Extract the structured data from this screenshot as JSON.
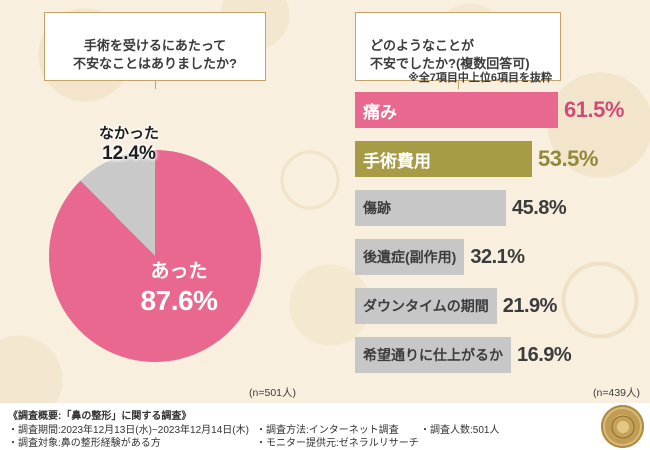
{
  "chart_data": [
    {
      "type": "pie",
      "question": "手術を受けるにあたって\n不安なことはありましたか?",
      "slices": [
        {
          "label": "あった",
          "value": 87.6,
          "pct_label": "87.6%",
          "color": "#e9688f"
        },
        {
          "label": "なかった",
          "value": 12.4,
          "pct_label": "12.4%",
          "color": "#c9c9c9"
        }
      ],
      "sample_size": "(n=501人)"
    },
    {
      "type": "bar",
      "orientation": "horizontal",
      "question": "どのようなことが\n不安でしたか?(複数回答可)",
      "note": "※全7項目中上位6項目を抜粋",
      "xlim": [
        0,
        65
      ],
      "bars": [
        {
          "label": "痛み",
          "value": 61.5,
          "pct_label": "61.5%",
          "color": "#e9688f",
          "label_color": "#ffffff",
          "pct_color": "#d14b79"
        },
        {
          "label": "手術費用",
          "value": 53.5,
          "pct_label": "53.5%",
          "color": "#a79b46",
          "label_color": "#ffffff",
          "pct_color": "#938839"
        },
        {
          "label": "傷跡",
          "value": 45.8,
          "pct_label": "45.8%",
          "color": "#c7c7c7",
          "label_color": "#3c3c3c",
          "pct_color": "#3c3c3c"
        },
        {
          "label": "後遺症(副作用)",
          "value": 32.1,
          "pct_label": "32.1%",
          "color": "#c7c7c7",
          "label_color": "#3c3c3c",
          "pct_color": "#3c3c3c"
        },
        {
          "label": "ダウンタイムの期間",
          "value": 21.9,
          "pct_label": "21.9%",
          "color": "#c7c7c7",
          "label_color": "#3c3c3c",
          "pct_color": "#3c3c3c"
        },
        {
          "label": "希望通りに仕上がるか",
          "value": 16.9,
          "pct_label": "16.9%",
          "color": "#c7c7c7",
          "label_color": "#3c3c3c",
          "pct_color": "#3c3c3c"
        }
      ],
      "sample_size": "(n=439人)"
    }
  ],
  "footer": {
    "title": "《調査概要:「鼻の整形」に関する調査》",
    "period": "・調査期間:2023年12月13日(水)~2023年12月14日(木)",
    "target": "・調査対象:鼻の整形経験がある方",
    "method": "・調査方法:インターネット調査",
    "provider": "・モニター提供元:ゼネラルリサーチ",
    "respondents": "・調査人数:501人"
  }
}
